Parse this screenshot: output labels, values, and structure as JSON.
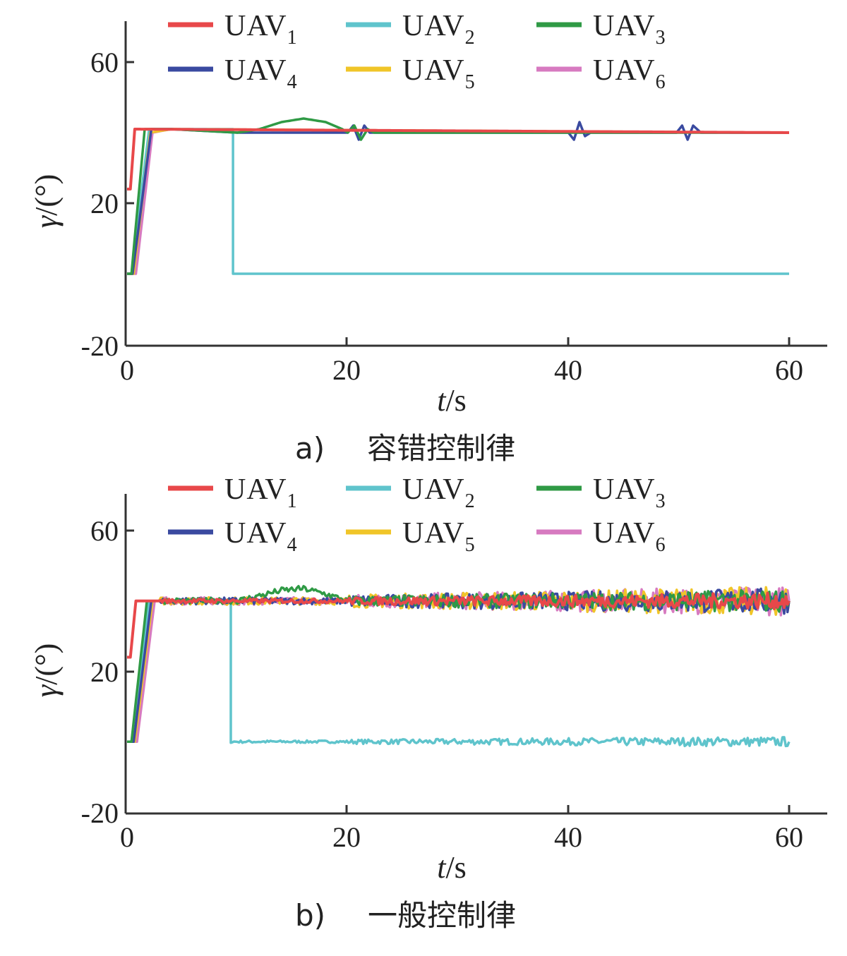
{
  "colors": {
    "UAV1": "#e8484a",
    "UAV2": "#5fc4cc",
    "UAV3": "#2f9a45",
    "UAV4": "#3a4aa0",
    "UAV5": "#f0c528",
    "UAV6": "#d77ac0"
  },
  "chart_data": [
    {
      "type": "line",
      "caption_label": "a)",
      "caption_text": "容错控制律",
      "xlabel_main": "t",
      "xlabel_unit": "/s",
      "ylabel_main": "γ",
      "ylabel_unit": "/(°)",
      "xlim": [
        0,
        60
      ],
      "ylim": [
        -20,
        80
      ],
      "xticks": [
        "0",
        "20",
        "40",
        "60"
      ],
      "yticks": [
        "-20",
        "20",
        "60"
      ],
      "legend_position": "top",
      "legend": [
        {
          "base": "UAV",
          "sub": "1",
          "color_key": "UAV1"
        },
        {
          "base": "UAV",
          "sub": "2",
          "color_key": "UAV2"
        },
        {
          "base": "UAV",
          "sub": "3",
          "color_key": "UAV3"
        },
        {
          "base": "UAV",
          "sub": "4",
          "color_key": "UAV4"
        },
        {
          "base": "UAV",
          "sub": "5",
          "color_key": "UAV5"
        },
        {
          "base": "UAV",
          "sub": "6",
          "color_key": "UAV6"
        }
      ],
      "series": [
        {
          "name": "UAV2",
          "color_key": "UAV2",
          "noise": 0,
          "points": [
            [
              0,
              0
            ],
            [
              0.4,
              0
            ],
            [
              2.0,
              41
            ],
            [
              9.6,
              41
            ],
            [
              9.6,
              0
            ],
            [
              60,
              0
            ]
          ]
        },
        {
          "name": "UAV6",
          "color_key": "UAV6",
          "noise": 0,
          "points": [
            [
              0,
              0
            ],
            [
              0.8,
              0
            ],
            [
              2.3,
              40
            ],
            [
              4,
              41
            ],
            [
              60,
              40
            ]
          ]
        },
        {
          "name": "UAV5",
          "color_key": "UAV5",
          "noise": 0,
          "points": [
            [
              0,
              0
            ],
            [
              0.6,
              0
            ],
            [
              2.1,
              40
            ],
            [
              4,
              41
            ],
            [
              60,
              40
            ]
          ]
        },
        {
          "name": "UAV4",
          "color_key": "UAV4",
          "noise": 0,
          "points": [
            [
              0,
              0
            ],
            [
              0.5,
              0
            ],
            [
              2.2,
              41
            ],
            [
              4,
              41
            ],
            [
              10,
              40
            ],
            [
              20,
              40
            ],
            [
              20.5,
              42
            ],
            [
              21,
              38
            ],
            [
              21.5,
              42
            ],
            [
              22,
              40
            ],
            [
              40,
              40
            ],
            [
              40.5,
              38
            ],
            [
              41,
              43
            ],
            [
              41.5,
              39
            ],
            [
              42,
              40
            ],
            [
              49.8,
              40
            ],
            [
              50.3,
              42
            ],
            [
              50.8,
              38
            ],
            [
              51.3,
              42
            ],
            [
              52,
              40
            ],
            [
              60,
              40
            ]
          ]
        },
        {
          "name": "UAV3",
          "color_key": "UAV3",
          "noise": 0,
          "points": [
            [
              0,
              0
            ],
            [
              0.4,
              0
            ],
            [
              1.6,
              41
            ],
            [
              4,
              41
            ],
            [
              10,
              40
            ],
            [
              12,
              41
            ],
            [
              14,
              43
            ],
            [
              16,
              44
            ],
            [
              18,
              43
            ],
            [
              19.5,
              41
            ],
            [
              20,
              40
            ],
            [
              20.6,
              42
            ],
            [
              21.2,
              38
            ],
            [
              21.8,
              41
            ],
            [
              22.4,
              40
            ],
            [
              60,
              40
            ]
          ]
        },
        {
          "name": "UAV1",
          "color_key": "UAV1",
          "noise": 0,
          "points": [
            [
              0,
              24
            ],
            [
              0.3,
              24
            ],
            [
              0.7,
              41
            ],
            [
              60,
              40
            ]
          ]
        }
      ]
    },
    {
      "type": "line",
      "caption_label": "b)",
      "caption_text": "一般控制律",
      "xlabel_main": "t",
      "xlabel_unit": "/s",
      "ylabel_main": "γ",
      "ylabel_unit": "/(°)",
      "xlim": [
        0,
        60
      ],
      "ylim": [
        -20,
        80
      ],
      "xticks": [
        "0",
        "20",
        "40",
        "60"
      ],
      "yticks": [
        "-20",
        "20",
        "60"
      ],
      "legend_position": "top",
      "legend": [
        {
          "base": "UAV",
          "sub": "1",
          "color_key": "UAV1"
        },
        {
          "base": "UAV",
          "sub": "2",
          "color_key": "UAV2"
        },
        {
          "base": "UAV",
          "sub": "3",
          "color_key": "UAV3"
        },
        {
          "base": "UAV",
          "sub": "4",
          "color_key": "UAV4"
        },
        {
          "base": "UAV",
          "sub": "5",
          "color_key": "UAV5"
        },
        {
          "base": "UAV",
          "sub": "6",
          "color_key": "UAV6"
        }
      ],
      "series": [
        {
          "name": "UAV2",
          "color_key": "UAV2",
          "noise": 0.6,
          "points": [
            [
              0,
              0
            ],
            [
              0.4,
              0
            ],
            [
              2.0,
              40
            ],
            [
              9.4,
              40
            ],
            [
              9.4,
              0
            ],
            [
              60,
              0
            ]
          ]
        },
        {
          "name": "UAV6",
          "color_key": "UAV6",
          "noise": 1.8,
          "points": [
            [
              0,
              0
            ],
            [
              0.9,
              0
            ],
            [
              2.5,
              40
            ],
            [
              60,
              40
            ]
          ]
        },
        {
          "name": "UAV5",
          "color_key": "UAV5",
          "noise": 1.8,
          "points": [
            [
              0,
              0
            ],
            [
              0.7,
              0
            ],
            [
              2.3,
              40
            ],
            [
              60,
              40
            ]
          ]
        },
        {
          "name": "UAV4",
          "color_key": "UAV4",
          "noise": 1.6,
          "points": [
            [
              0,
              0
            ],
            [
              0.6,
              0
            ],
            [
              2.2,
              40
            ],
            [
              60,
              40
            ]
          ]
        },
        {
          "name": "UAV3",
          "color_key": "UAV3",
          "noise": 1.4,
          "points": [
            [
              0,
              0
            ],
            [
              0.4,
              0
            ],
            [
              1.8,
              40
            ],
            [
              10,
              40
            ],
            [
              12,
              41.5
            ],
            [
              14,
              43
            ],
            [
              16,
              43.5
            ],
            [
              18,
              42
            ],
            [
              20,
              40
            ],
            [
              60,
              40
            ]
          ]
        },
        {
          "name": "UAV1",
          "color_key": "UAV1",
          "noise": 1.0,
          "points": [
            [
              0,
              24
            ],
            [
              0.3,
              24
            ],
            [
              0.8,
              40
            ],
            [
              60,
              40
            ]
          ]
        }
      ]
    }
  ]
}
